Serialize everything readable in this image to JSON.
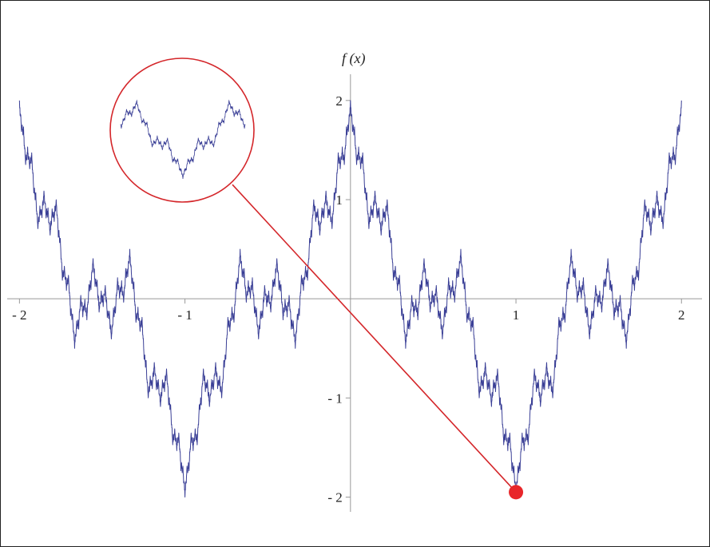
{
  "chart_data": {
    "type": "line",
    "title": "",
    "xlabel": "",
    "ylabel": "f (x)",
    "xlim": [
      -2.05,
      2.1
    ],
    "ylim": [
      -2.35,
      2.2
    ],
    "x_ticks": [
      {
        "value": -2,
        "label": "- 2"
      },
      {
        "value": -1,
        "label": "- 1"
      },
      {
        "value": 1,
        "label": "1"
      },
      {
        "value": 2,
        "label": "2"
      }
    ],
    "y_ticks": [
      {
        "value": -2,
        "label": "- 2"
      },
      {
        "value": -1,
        "label": "- 1"
      },
      {
        "value": 1,
        "label": "1"
      },
      {
        "value": 2,
        "label": "2"
      }
    ],
    "function": "weierstrass",
    "function_params": {
      "a": 0.5,
      "b": 3,
      "terms": 12
    },
    "x_range": [
      -2,
      2
    ],
    "series": [
      {
        "color": "#3a3f96"
      }
    ],
    "highlight_point": {
      "x": 1,
      "y": -1.95,
      "color": "#e8262a"
    },
    "zoom_inset": {
      "shown": true,
      "border_color": "#d4262a",
      "content": "magnified view of curve near highlighted point"
    },
    "grid": false,
    "legend": "none"
  }
}
